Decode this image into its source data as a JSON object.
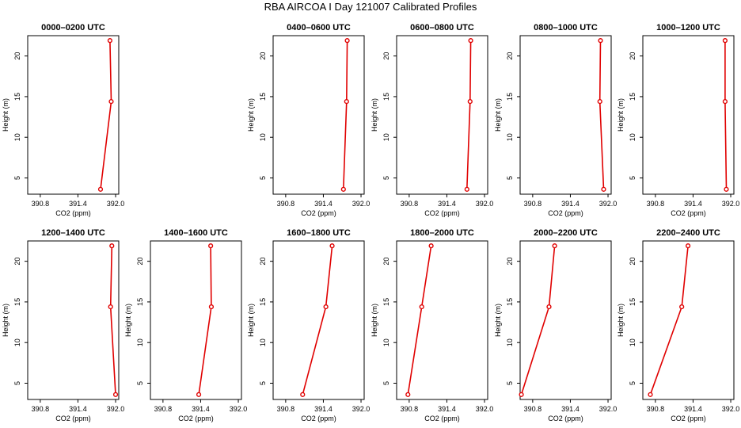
{
  "title": "RBA AIRCOA I  Day 121007  Calibrated Profiles",
  "colors": {
    "series": "#e00000",
    "axis": "#000000"
  },
  "chart_data": [
    {
      "type": "line",
      "title": "0000–0200 UTC",
      "xlabel": "CO2 (ppm)",
      "ylabel": "Height (m)",
      "xlim": [
        390.6,
        392.05
      ],
      "ylim": [
        3,
        22.5
      ],
      "xticks": [
        390.8,
        391.4,
        392.0
      ],
      "xtick_labels": [
        "390.8",
        "391.4",
        "392.0"
      ],
      "yticks": [
        5,
        10,
        15,
        20
      ],
      "ytick_labels": [
        "5",
        "10",
        "15",
        "20"
      ],
      "series": [
        {
          "x": [
            391.76,
            391.93,
            391.91
          ],
          "y": [
            3.6,
            14.4,
            21.9
          ]
        }
      ]
    },
    null,
    {
      "type": "line",
      "title": "0400–0600 UTC",
      "xlabel": "CO2 (ppm)",
      "ylabel": "Height (m)",
      "xlim": [
        390.6,
        392.05
      ],
      "ylim": [
        3,
        22.5
      ],
      "xticks": [
        390.8,
        391.4,
        392.0
      ],
      "xtick_labels": [
        "390.8",
        "391.4",
        "392.0"
      ],
      "yticks": [
        5,
        10,
        15,
        20
      ],
      "ytick_labels": [
        "5",
        "10",
        "15",
        "20"
      ],
      "series": [
        {
          "x": [
            391.72,
            391.77,
            391.78
          ],
          "y": [
            3.6,
            14.4,
            21.9
          ]
        }
      ]
    },
    {
      "type": "line",
      "title": "0600–0800 UTC",
      "xlabel": "CO2 (ppm)",
      "ylabel": "Height (m)",
      "xlim": [
        390.6,
        392.05
      ],
      "ylim": [
        3,
        22.5
      ],
      "xticks": [
        390.8,
        391.4,
        392.0
      ],
      "xtick_labels": [
        "390.8",
        "391.4",
        "392.0"
      ],
      "yticks": [
        5,
        10,
        15,
        20
      ],
      "ytick_labels": [
        "5",
        "10",
        "15",
        "20"
      ],
      "series": [
        {
          "x": [
            391.72,
            391.77,
            391.78
          ],
          "y": [
            3.6,
            14.4,
            21.9
          ]
        }
      ]
    },
    {
      "type": "line",
      "title": "0800–1000 UTC",
      "xlabel": "CO2 (ppm)",
      "ylabel": "Height (m)",
      "xlim": [
        390.6,
        392.05
      ],
      "ylim": [
        3,
        22.5
      ],
      "xticks": [
        390.8,
        391.4,
        392.0
      ],
      "xtick_labels": [
        "390.8",
        "391.4",
        "392.0"
      ],
      "yticks": [
        5,
        10,
        15,
        20
      ],
      "ytick_labels": [
        "5",
        "10",
        "15",
        "20"
      ],
      "series": [
        {
          "x": [
            391.93,
            391.87,
            391.88
          ],
          "y": [
            3.6,
            14.4,
            21.9
          ]
        }
      ]
    },
    {
      "type": "line",
      "title": "1000–1200 UTC",
      "xlabel": "CO2 (ppm)",
      "ylabel": "Height (m)",
      "xlim": [
        390.6,
        392.05
      ],
      "ylim": [
        3,
        22.5
      ],
      "xticks": [
        390.8,
        391.4,
        392.0
      ],
      "xtick_labels": [
        "390.8",
        "391.4",
        "392.0"
      ],
      "yticks": [
        5,
        10,
        15,
        20
      ],
      "ytick_labels": [
        "5",
        "10",
        "15",
        "20"
      ],
      "series": [
        {
          "x": [
            391.93,
            391.91,
            391.91
          ],
          "y": [
            3.6,
            14.4,
            21.9
          ]
        }
      ]
    },
    {
      "type": "line",
      "title": "1200–1400 UTC",
      "xlabel": "CO2 (ppm)",
      "ylabel": "Height (m)",
      "xlim": [
        390.6,
        392.05
      ],
      "ylim": [
        3,
        22.5
      ],
      "xticks": [
        390.8,
        391.4,
        392.0
      ],
      "xtick_labels": [
        "390.8",
        "391.4",
        "392.0"
      ],
      "yticks": [
        5,
        10,
        15,
        20
      ],
      "ytick_labels": [
        "5",
        "10",
        "15",
        "20"
      ],
      "series": [
        {
          "x": [
            392.0,
            391.92,
            391.94
          ],
          "y": [
            3.6,
            14.4,
            21.9
          ]
        }
      ]
    },
    {
      "type": "line",
      "title": "1400–1600 UTC",
      "xlabel": "CO2 (ppm)",
      "ylabel": "Height (m)",
      "xlim": [
        390.6,
        392.05
      ],
      "ylim": [
        3,
        22.5
      ],
      "xticks": [
        390.8,
        391.4,
        392.0
      ],
      "xtick_labels": [
        "390.8",
        "391.4",
        "392.0"
      ],
      "yticks": [
        5,
        10,
        15,
        20
      ],
      "ytick_labels": [
        "5",
        "10",
        "15",
        "20"
      ],
      "series": [
        {
          "x": [
            391.37,
            391.57,
            391.56
          ],
          "y": [
            3.6,
            14.4,
            21.9
          ]
        }
      ]
    },
    {
      "type": "line",
      "title": "1600–1800 UTC",
      "xlabel": "CO2 (ppm)",
      "ylabel": "Height (m)",
      "xlim": [
        390.6,
        392.05
      ],
      "ylim": [
        3,
        22.5
      ],
      "xticks": [
        390.8,
        391.4,
        392.0
      ],
      "xtick_labels": [
        "390.8",
        "391.4",
        "392.0"
      ],
      "yticks": [
        5,
        10,
        15,
        20
      ],
      "ytick_labels": [
        "5",
        "10",
        "15",
        "20"
      ],
      "series": [
        {
          "x": [
            391.07,
            391.44,
            391.54
          ],
          "y": [
            3.6,
            14.4,
            21.9
          ]
        }
      ]
    },
    {
      "type": "line",
      "title": "1800–2000 UTC",
      "xlabel": "CO2 (ppm)",
      "ylabel": "Height (m)",
      "xlim": [
        390.6,
        392.05
      ],
      "ylim": [
        3,
        22.5
      ],
      "xticks": [
        390.8,
        391.4,
        392.0
      ],
      "xtick_labels": [
        "390.8",
        "391.4",
        "392.0"
      ],
      "yticks": [
        5,
        10,
        15,
        20
      ],
      "ytick_labels": [
        "5",
        "10",
        "15",
        "20"
      ],
      "series": [
        {
          "x": [
            390.78,
            391.0,
            391.15
          ],
          "y": [
            3.6,
            14.4,
            21.9
          ]
        }
      ]
    },
    {
      "type": "line",
      "title": "2000–2200 UTC",
      "xlabel": "CO2 (ppm)",
      "ylabel": "Height (m)",
      "xlim": [
        390.6,
        392.05
      ],
      "ylim": [
        3,
        22.5
      ],
      "xticks": [
        390.8,
        391.4,
        392.0
      ],
      "xtick_labels": [
        "390.8",
        "391.4",
        "392.0"
      ],
      "yticks": [
        5,
        10,
        15,
        20
      ],
      "ytick_labels": [
        "5",
        "10",
        "15",
        "20"
      ],
      "series": [
        {
          "x": [
            390.62,
            391.06,
            391.15
          ],
          "y": [
            3.6,
            14.4,
            21.9
          ]
        }
      ]
    },
    {
      "type": "line",
      "title": "2200–2400 UTC",
      "xlabel": "CO2 (ppm)",
      "ylabel": "Height (m)",
      "xlim": [
        390.6,
        392.05
      ],
      "ylim": [
        3,
        22.5
      ],
      "xticks": [
        390.8,
        391.4,
        392.0
      ],
      "xtick_labels": [
        "390.8",
        "391.4",
        "392.0"
      ],
      "yticks": [
        5,
        10,
        15,
        20
      ],
      "ytick_labels": [
        "5",
        "10",
        "15",
        "20"
      ],
      "series": [
        {
          "x": [
            390.72,
            391.22,
            391.32
          ],
          "y": [
            3.6,
            14.4,
            21.9
          ]
        }
      ]
    }
  ]
}
